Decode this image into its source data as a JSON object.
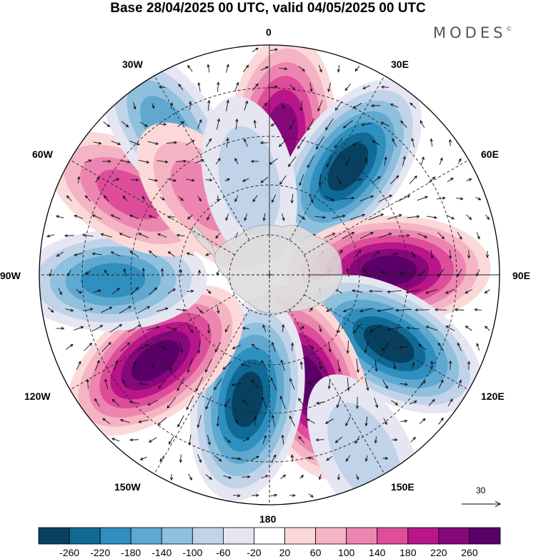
{
  "title": "Base 28/04/2025 00 UTC, valid 04/05/2025 00 UTC",
  "logo": {
    "text": "MODES",
    "mark": "©"
  },
  "longitude_labels": [
    "0",
    "30E",
    "60E",
    "90E",
    "120E",
    "150E",
    "180",
    "150W",
    "120W",
    "90W",
    "60W",
    "30W"
  ],
  "reference_vector": {
    "value": "30"
  },
  "colorbar": {
    "colors": [
      "#08405f",
      "#0f6a95",
      "#2f8fbf",
      "#5fa9d1",
      "#8fc0de",
      "#c0d3e8",
      "#e6e6f2",
      "#ffffff",
      "#fbd9d9",
      "#f4b4c4",
      "#ec86b0",
      "#de4d9a",
      "#b8168a",
      "#87087a",
      "#5a0068"
    ],
    "tick_labels": [
      "-260",
      "-220",
      "-180",
      "-140",
      "-100",
      "-60",
      "-20",
      "20",
      "60",
      "100",
      "140",
      "180",
      "220",
      "260"
    ]
  },
  "anomalies": [
    {
      "lon": 5,
      "dist": 0.62,
      "value": 230
    },
    {
      "lon": 36,
      "dist": 0.58,
      "value": -260
    },
    {
      "lon": 88,
      "dist": 0.52,
      "value": 270
    },
    {
      "lon": 120,
      "dist": 0.6,
      "value": -270
    },
    {
      "lon": 160,
      "dist": 0.5,
      "value": 270
    },
    {
      "lon": 190,
      "dist": 0.55,
      "value": -280
    },
    {
      "lon": 233,
      "dist": 0.62,
      "value": 270
    },
    {
      "lon": 268,
      "dist": 0.68,
      "value": -180
    },
    {
      "lon": 300,
      "dist": 0.7,
      "value": 150
    },
    {
      "lon": 325,
      "dist": 0.78,
      "value": -150
    },
    {
      "lon": 320,
      "dist": 0.45,
      "value": 100
    },
    {
      "lon": 348,
      "dist": 0.42,
      "value": -80
    },
    {
      "lon": 152,
      "dist": 0.88,
      "value": -90
    }
  ]
}
